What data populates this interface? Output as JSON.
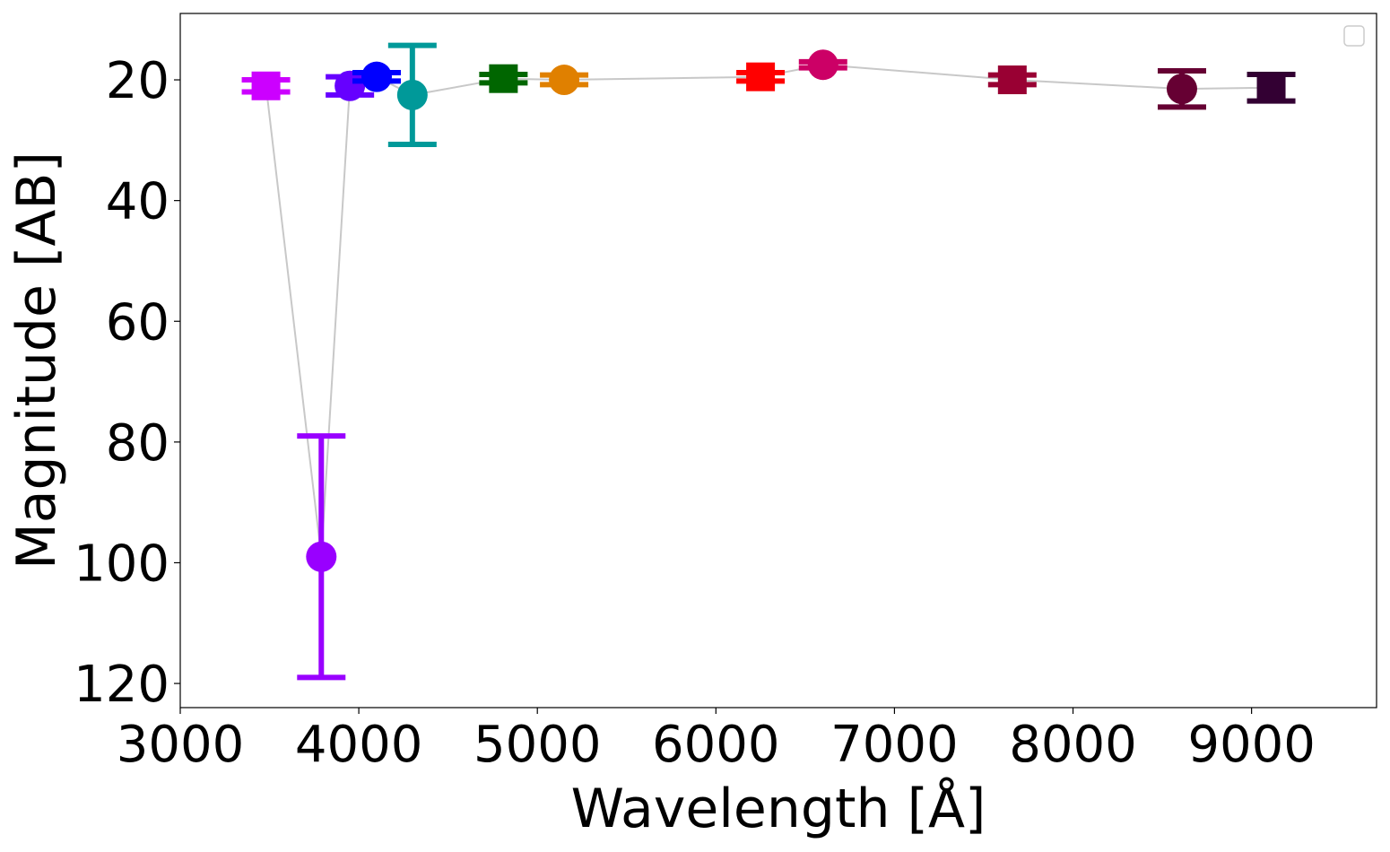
{
  "chart_data": {
    "type": "scatter",
    "title": "",
    "xlabel": "Wavelength [Å]",
    "ylabel": "Magnitude [AB]",
    "xlim": [
      3000,
      9700
    ],
    "ylim": [
      124,
      9
    ],
    "y_inverted": true,
    "x_ticks": [
      3000,
      4000,
      5000,
      6000,
      7000,
      8000,
      9000
    ],
    "y_ticks": [
      20,
      40,
      60,
      80,
      100,
      120
    ],
    "grid": false,
    "legend": "top-right (empty)",
    "connector_color": "#c8c8c8",
    "points": [
      {
        "x": 3480,
        "y": 21.0,
        "err": 1.0,
        "marker": "square",
        "color": "#cc00ff"
      },
      {
        "x": 3790,
        "y": 99.0,
        "err": 20.0,
        "marker": "circle",
        "color": "#9900ff"
      },
      {
        "x": 3950,
        "y": 21.0,
        "err": 1.5,
        "marker": "circle",
        "color": "#6600ff"
      },
      {
        "x": 4100,
        "y": 19.5,
        "err": 0.7,
        "marker": "circle",
        "color": "#0000ff"
      },
      {
        "x": 4300,
        "y": 22.5,
        "err": 8.2,
        "marker": "circle",
        "color": "#009999"
      },
      {
        "x": 4810,
        "y": 19.8,
        "err": 0.7,
        "marker": "square",
        "color": "#006600"
      },
      {
        "x": 5150,
        "y": 20.0,
        "err": 0.8,
        "marker": "circle",
        "color": "#e08000"
      },
      {
        "x": 6250,
        "y": 19.5,
        "err": 0.7,
        "marker": "square",
        "color": "#ff0000"
      },
      {
        "x": 6600,
        "y": 17.5,
        "err": 0.5,
        "marker": "circle",
        "color": "#cc0066"
      },
      {
        "x": 7660,
        "y": 20.0,
        "err": 0.8,
        "marker": "square",
        "color": "#990033"
      },
      {
        "x": 8610,
        "y": 21.5,
        "err": 3.0,
        "marker": "circle",
        "color": "#660033"
      },
      {
        "x": 9110,
        "y": 21.3,
        "err": 2.2,
        "marker": "square",
        "color": "#330033"
      }
    ]
  }
}
